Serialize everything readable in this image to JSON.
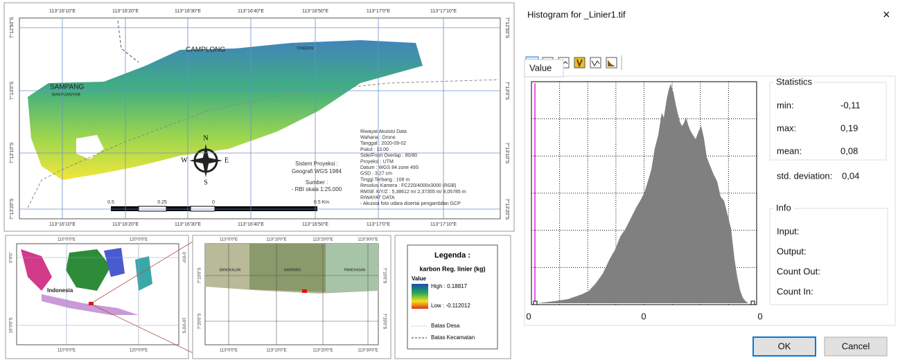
{
  "map": {
    "top_labels": [
      "113°16'10\"E",
      "113°16'20\"E",
      "113°16'30\"E",
      "113°16'40\"E",
      "113°16'50\"E",
      "113°17'0\"E",
      "113°17'10\"E"
    ],
    "bottom_labels": [
      "113°16'10\"E",
      "113°16'20\"E",
      "113°16'30\"E",
      "113°16'40\"E",
      "113°16'50\"E",
      "113°17'0\"E",
      "113°17'10\"E"
    ],
    "left_labels": [
      "7°12'50\"S",
      "7°13'0\"S",
      "7°13'10\"S",
      "7°13'20\"S"
    ],
    "right_labels": [
      "7°12'50\"S",
      "7°13'0\"S",
      "7°13'10\"S",
      "7°13'20\"S"
    ],
    "places": [
      "CAMPLONG",
      "SAMPANG",
      "BANYUANYAR",
      "TANDAN"
    ],
    "compass": [
      "N",
      "E",
      "S",
      "W"
    ],
    "projection": [
      "Sistem Proyeksi :",
      "Geografi WGS 1984",
      "Sumber :",
      "- RBI skala 1:25.000"
    ],
    "scale_labels": [
      "0.5",
      "0.25",
      "0",
      "0.5 Km"
    ],
    "acquisition": [
      "Riwayat Akuisisi Data",
      "Wahana : Drone",
      "Tanggal : 2020-09-02",
      "Pukul : 13.00",
      "Side/Front Overlap : 80/80",
      "Proyeksi : UTM",
      "Datum : WGS 84  zone 49S",
      "GSD : 3.27 cm",
      "Tinggi Terbang : 108 m",
      "Resolusi Kamera : FC220/4000x3000 (RGB)",
      "RMSE X/Y/Z : 5,38612 m/ 2,37355 m/ 8,05785 m",
      "RIWAYAT DATA",
      "- Akuisisi foto udara  disertai pengambilan GCP"
    ]
  },
  "inset_indonesia": {
    "top_labels": [
      "110°0'0\"E",
      "120°0'0\"E"
    ],
    "bottom_labels": [
      "110°0'0\"E",
      "120°0'0\"E"
    ],
    "left_labels": [
      "0°0'0\"",
      "10°0'0\"S"
    ],
    "right_labels": [
      "0°0'0\"",
      "10°0'0\"S"
    ],
    "label": "Indonesia"
  },
  "inset_madura": {
    "top_labels": [
      "113°0'0\"E",
      "113°10'0\"E",
      "113°20'0\"E",
      "113°30'0\"E"
    ],
    "bottom_labels": [
      "113°0'0\"E",
      "113°10'0\"E",
      "113°20'0\"E",
      "113°30'0\"E"
    ],
    "left_labels": [
      "7°10'0\"S",
      "7°20'0\"S"
    ],
    "right_labels": [
      "7°10'0\"S",
      "7°20'0\"S"
    ],
    "regions": [
      "BANGKALAN",
      "SAMPANG",
      "PAMEKASAN"
    ]
  },
  "legend": {
    "title": "Legenda :",
    "layer": "karbon Reg. linier (kg)",
    "value": "Value",
    "high": "High : 0.18817",
    "low": "Low : -0.112012",
    "village": "Batas Desa",
    "district": "Batas Kecamatan"
  },
  "dialog": {
    "title": "Histogram for _Linier1.tif",
    "close": "×",
    "tab": "Value",
    "x_labels": [
      "0",
      "0",
      "0"
    ],
    "statistics": {
      "title": "Statistics",
      "rows": [
        [
          "min:",
          "-0,11"
        ],
        [
          "max:",
          "0,19"
        ],
        [
          "mean:",
          "0,08"
        ],
        [
          "std. deviation:",
          "0,04"
        ]
      ]
    },
    "info": {
      "title": "Info",
      "rows": [
        "Input:",
        "Output:",
        "Count Out:",
        "Count In:"
      ]
    },
    "ok": "OK",
    "cancel": "Cancel"
  }
}
